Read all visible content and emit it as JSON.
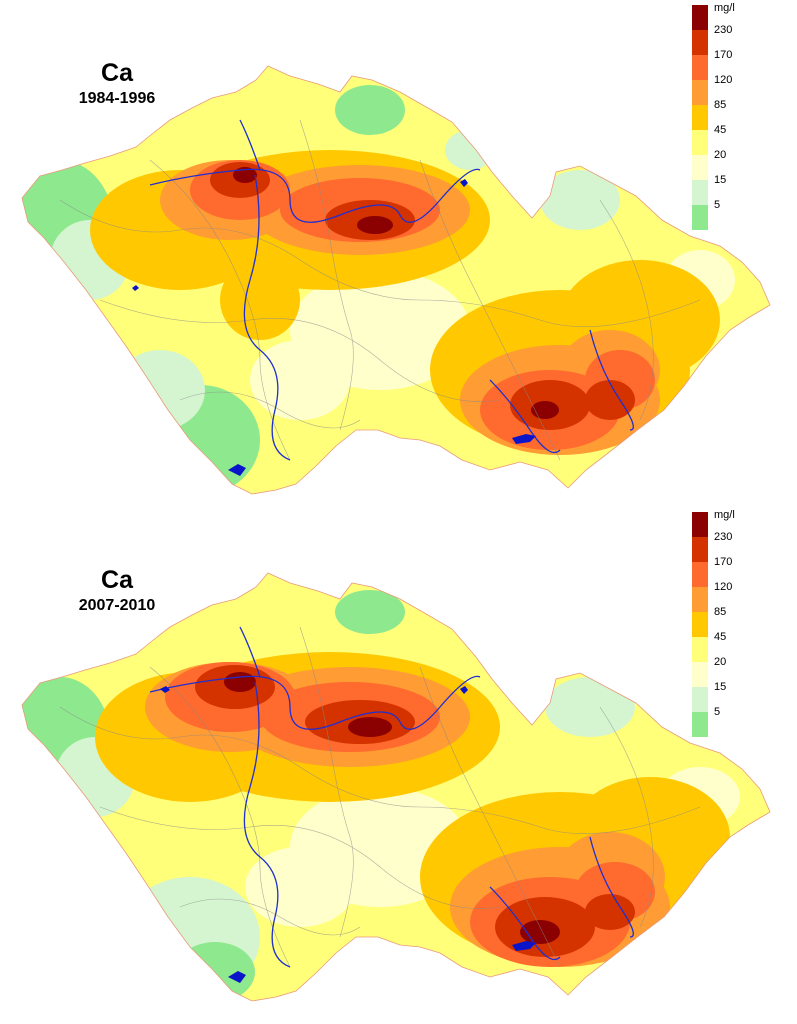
{
  "colors": {
    "class_5": "#8ee88e",
    "class_15": "#d4f5cf",
    "class_20": "#ffffcc",
    "class_45": "#ffff7a",
    "class_85": "#ffc800",
    "class_120": "#ff9c33",
    "class_170": "#ff6a2e",
    "class_230": "#d43300",
    "class_max": "#8b0000",
    "rivers": "#1f2fd0",
    "lakes": "#0a14c8",
    "streams": "#8a8a8a"
  },
  "maps": [
    {
      "element": "Ca",
      "period": "1984-1996",
      "legend": {
        "unit": "mg/l",
        "ticks": [
          "230",
          "170",
          "120",
          "85",
          "45",
          "20",
          "15",
          "5"
        ]
      }
    },
    {
      "element": "Ca",
      "period": "2007-2010",
      "legend": {
        "unit": "mg/l",
        "ticks": [
          "230",
          "170",
          "120",
          "85",
          "45",
          "20",
          "15",
          "5"
        ]
      }
    }
  ]
}
